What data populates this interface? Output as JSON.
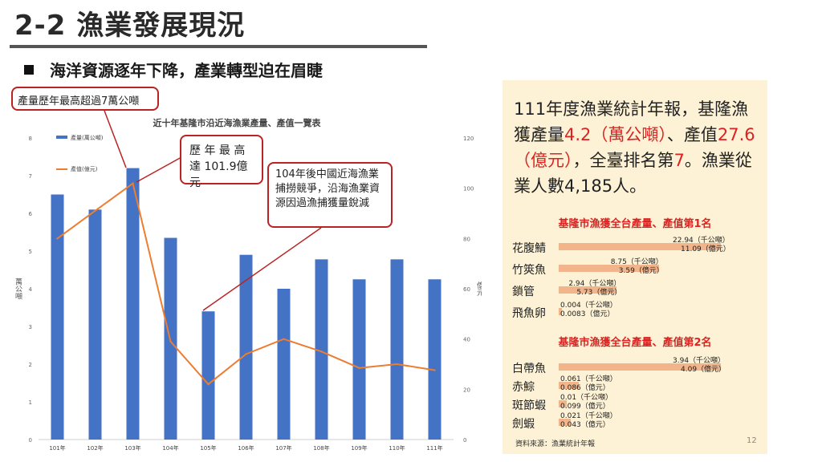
{
  "slide": {
    "title": "2-2 漁業發展現況",
    "subheading": "海洋資源逐年下降，產業轉型迫在眉睫",
    "page_number": "12",
    "source": "資料來源：漁業統計年報"
  },
  "callouts": {
    "max_output": "產量歷年最高超過7萬公噸",
    "max_value": "歷 年 最 高 達 101.9億元",
    "decline": "104年後中國近海漁業捕撈競爭，沿海漁業資源因過漁捕獲量銳減"
  },
  "summary": {
    "p1": "111年度漁業統計年報，基隆漁獲產量",
    "v1": "4.2（萬公噸）",
    "p2": "、產值",
    "v2": "27.6（億元）",
    "p3": "，全臺排名第",
    "v3": "7",
    "p4": "。漁業從業人數4,185人。"
  },
  "rank1": {
    "title": "基隆市漁獲全台產量、產值第1名",
    "items": [
      {
        "name": "花腹鯖",
        "qty": 22.94,
        "qty_label": "22.94（千公噸）",
        "val_label": "11.09（億元）"
      },
      {
        "name": "竹筴魚",
        "qty": 8.75,
        "qty_label": "8.75（千公噸）",
        "val_label": "3.59（億元）"
      },
      {
        "name": "鎖管",
        "qty": 2.94,
        "qty_label": "2.94（千公噸）",
        "val_label": "5.73（億元）"
      },
      {
        "name": "飛魚卵",
        "qty": 0.004,
        "qty_label": "0.004（千公噸）",
        "val_label": "0.0083（億元）"
      }
    ]
  },
  "rank2": {
    "title": "基隆市漁獲全台產量、產值第2名",
    "items": [
      {
        "name": "白帶魚",
        "qty": 3.94,
        "qty_label": "3.94（千公噸）",
        "val_label": "4.09（億元）"
      },
      {
        "name": "赤鯮",
        "qty": 0.061,
        "qty_label": "0.061（千公噸）",
        "val_label": "0.086（億元）"
      },
      {
        "name": "斑節蝦",
        "qty": 0.01,
        "qty_label": "0.01（千公噸）",
        "val_label": "0.099（億元）"
      },
      {
        "name": "劍蝦",
        "qty": 0.021,
        "qty_label": "0.021（千公噸）",
        "val_label": "0.043（億元）"
      }
    ]
  },
  "chart_data": {
    "type": "bar",
    "title": "近十年基隆市沿近海漁業產量、產值一覽表",
    "categories": [
      "101年",
      "102年",
      "103年",
      "104年",
      "105年",
      "106年",
      "107年",
      "108年",
      "109年",
      "110年",
      "111年"
    ],
    "series": [
      {
        "name": "產量(萬公噸)",
        "type": "bar",
        "axis": "left",
        "values": [
          6.5,
          6.1,
          7.2,
          5.35,
          3.4,
          4.9,
          4.0,
          4.78,
          4.25,
          4.78,
          4.25
        ]
      },
      {
        "name": "產值(億元)",
        "type": "line",
        "axis": "right",
        "values": [
          80,
          91,
          101.9,
          39,
          22,
          34,
          40,
          35,
          28.5,
          30,
          27.6
        ]
      }
    ],
    "ylabel": "萬公噸",
    "y2label": "億元",
    "ylim": [
      0,
      8
    ],
    "y2lim": [
      0,
      120
    ],
    "yticks": [
      0,
      1,
      2,
      3,
      4,
      5,
      6,
      7,
      8
    ],
    "y2ticks": [
      0,
      20,
      40,
      60,
      80,
      100,
      120
    ],
    "colors": {
      "bar": "#4472c4",
      "line": "#ed7d31"
    },
    "legend": "top-left"
  }
}
